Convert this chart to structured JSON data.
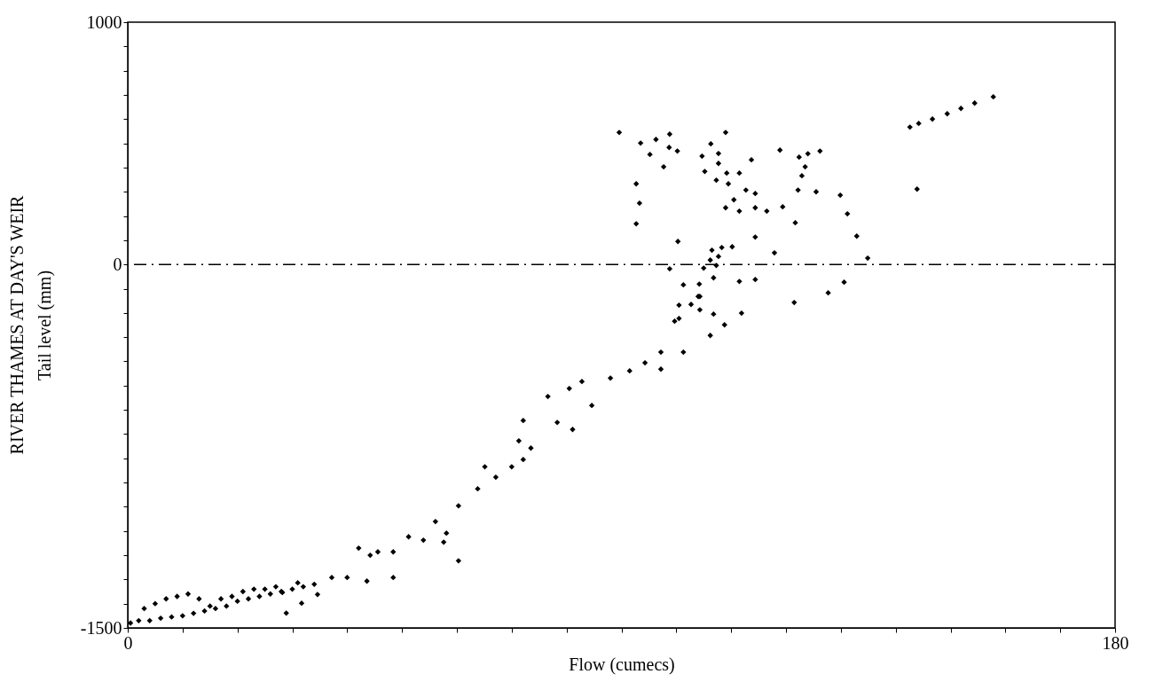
{
  "chart_data": {
    "type": "scatter",
    "title": "RIVER THAMES AT DAY'S WEIR",
    "xlabel": "Flow (cumecs)",
    "ylabel": "Tail level (mm)",
    "xlim": [
      0,
      180
    ],
    "ylim": [
      -1500,
      1000
    ],
    "xticks": [
      0,
      {
        "value": 10,
        "label": null
      },
      {
        "value": 20,
        "label": null
      },
      {
        "value": 30,
        "label": null
      },
      {
        "value": 40,
        "label": null
      },
      {
        "value": 50,
        "label": null
      },
      {
        "value": 60,
        "label": null
      },
      {
        "value": 70,
        "label": null
      },
      {
        "value": 80,
        "label": null
      },
      {
        "value": 90,
        "label": null
      },
      {
        "value": 100,
        "label": null
      },
      {
        "value": 110,
        "label": null
      },
      {
        "value": 120,
        "label": null
      },
      {
        "value": 130,
        "label": null
      },
      {
        "value": 140,
        "label": null
      },
      {
        "value": 150,
        "label": null
      },
      {
        "value": 160,
        "label": null
      },
      {
        "value": 170,
        "label": null
      },
      180
    ],
    "yticks": [
      -1500,
      {
        "value": -1400,
        "label": null
      },
      {
        "value": -1300,
        "label": null
      },
      {
        "value": -1200,
        "label": null
      },
      {
        "value": -1100,
        "label": null
      },
      {
        "value": -1000,
        "label": null
      },
      {
        "value": -900,
        "label": null
      },
      {
        "value": -800,
        "label": null
      },
      {
        "value": -700,
        "label": null
      },
      {
        "value": -600,
        "label": null
      },
      {
        "value": -500,
        "label": null
      },
      {
        "value": -400,
        "label": null
      },
      {
        "value": -300,
        "label": null
      },
      {
        "value": -200,
        "label": null
      },
      {
        "value": -100,
        "label": null
      },
      0,
      {
        "value": 100,
        "label": null
      },
      {
        "value": 200,
        "label": null
      },
      {
        "value": 300,
        "label": null
      },
      {
        "value": 400,
        "label": null
      },
      {
        "value": 500,
        "label": null
      },
      {
        "value": 600,
        "label": null
      },
      {
        "value": 700,
        "label": null
      },
      {
        "value": 800,
        "label": null
      },
      {
        "value": 900,
        "label": null
      },
      1000
    ],
    "grid": false,
    "marker": "diamond",
    "ref_lines": [
      {
        "axis": "y",
        "value": 0,
        "color": "#000000",
        "line_style": "dashed"
      }
    ],
    "series": [
      {
        "color": "#000000",
        "x": [
          0.5,
          2,
          4,
          6,
          8,
          10,
          12,
          14,
          16,
          18,
          20,
          22,
          24,
          26,
          28,
          3,
          5,
          7,
          9,
          11,
          13,
          15,
          17,
          19,
          21,
          23,
          25,
          27,
          30,
          32,
          34,
          28.9,
          31.7,
          34.6,
          37.2,
          40,
          31,
          28.2,
          44.2,
          45.6,
          48.4,
          51.2,
          53.9,
          56.1,
          58.1,
          60.3,
          60.3,
          63.8,
          67.1,
          70,
          72.1,
          72.1,
          71.3,
          73.5,
          76.6,
          78.3,
          81.1,
          82.8,
          84.6,
          88,
          91.5,
          94.3,
          97.2,
          100.5,
          102.7,
          104,
          106.2,
          97.2,
          101.3,
          43.6,
          48.4,
          57.6,
          42.1,
          65.1,
          80.5,
          89.6,
          93.5,
          96.3,
          98.8,
          98.7,
          100.2,
          95.2,
          97.7,
          92.7,
          93.3,
          92.7,
          100.3,
          106.3,
          109,
          107.7,
          104.7,
          105.2,
          107.7,
          109.2,
          111.5,
          107.3,
          109.5,
          112.7,
          114.4,
          113.7,
          118.9,
          122.4,
          124,
          126.2,
          123.5,
          122.9,
          122.2,
          125.5,
          129.9,
          131.2,
          132.9,
          134.9,
          110.5,
          109,
          111.5,
          114.4,
          116.5,
          119.4,
          121.7,
          114.4,
          117.9,
          110.2,
          108.3,
          106.5,
          107.7,
          106.2,
          107.3,
          105,
          98.8,
          106.8,
          111.5,
          114.4,
          130.6,
          127.7,
          121.5,
          101.3,
          104.2,
          104.3,
          100.5,
          104.3,
          106.8,
          111.9,
          99.7,
          108.8,
          142.6,
          144.2,
          146.7,
          149.4,
          151.9,
          154.4,
          157.8,
          143.9
        ],
        "values": [
          -1480,
          -1470,
          -1470,
          -1460,
          -1455,
          -1450,
          -1440,
          -1430,
          -1420,
          -1410,
          -1390,
          -1380,
          -1370,
          -1360,
          -1350,
          -1420,
          -1400,
          -1380,
          -1370,
          -1360,
          -1380,
          -1410,
          -1380,
          -1370,
          -1350,
          -1340,
          -1340,
          -1330,
          -1340,
          -1330,
          -1320,
          -1439,
          -1398,
          -1362,
          -1292,
          -1292,
          -1314,
          -1354,
          -1200,
          -1186,
          -1186,
          -1124,
          -1138,
          -1061,
          -1109,
          -1223,
          -996,
          -926,
          -878,
          -835,
          -805,
          -644,
          -728,
          -758,
          -545,
          -652,
          -681,
          -483,
          -582,
          -469,
          -439,
          -406,
          -362,
          -223,
          -165,
          -132,
          -293,
          -432,
          -362,
          -1307,
          -1292,
          -1146,
          -1171,
          -835,
          -512,
          545,
          501,
          516,
          538,
          483,
          468,
          454,
          403,
          333,
          253,
          168,
          95,
          498,
          545,
          458,
          447,
          384,
          417,
          377,
          377,
          348,
          333,
          307,
          293,
          432,
          472,
          443,
          457,
          468,
          403,
          366,
          307,
          300,
          286,
          209,
          117,
          26,
          267,
          234,
          220,
          234,
          220,
          238,
          172,
          113,
          48,
          73,
          70,
          59,
          33,
          18,
          -4,
          -15,
          -18,
          -55,
          -70,
          -62,
          -73,
          -117,
          -157,
          -84,
          -81,
          -132,
          -168,
          -187,
          -205,
          -201,
          -234,
          -249,
          567,
          582,
          600,
          622,
          644,
          666,
          692,
          311
        ]
      }
    ]
  }
}
